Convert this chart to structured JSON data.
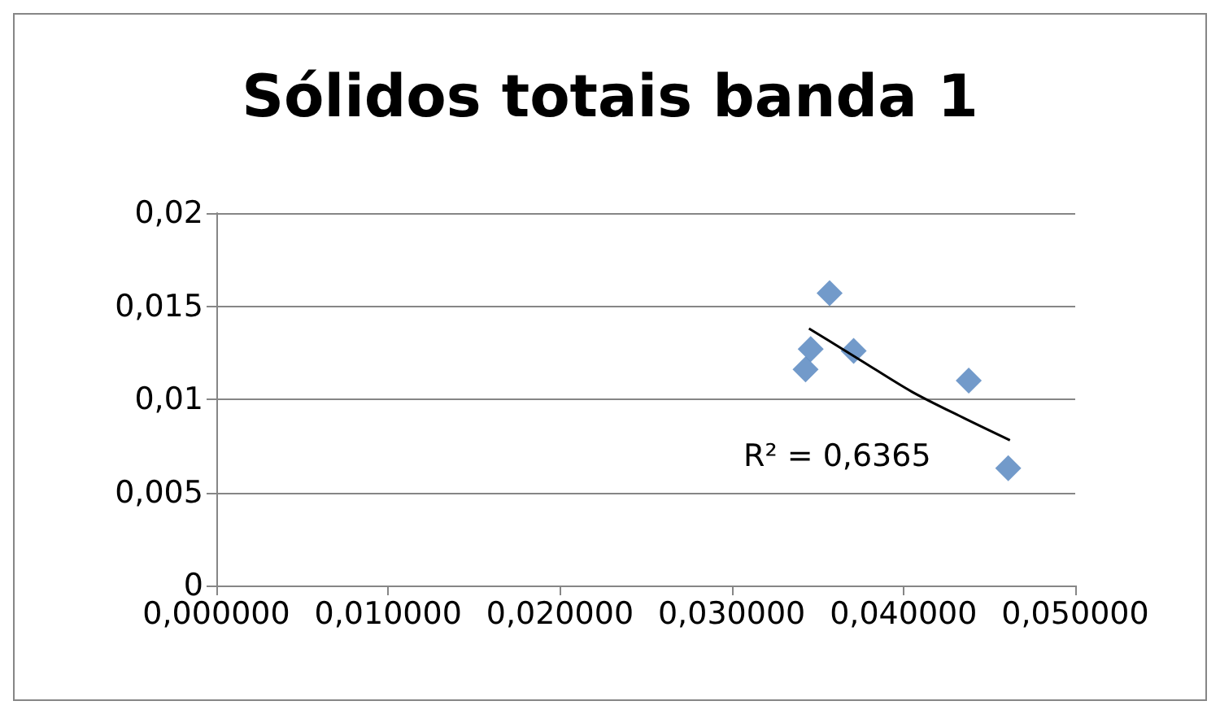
{
  "chart_data": {
    "type": "scatter",
    "title": "Sólidos totais banda 1",
    "marker": "diamond",
    "grid": "y",
    "xlim": [
      0,
      0.05
    ],
    "xticks": [
      {
        "value": 0,
        "label": "0,000000"
      },
      {
        "value": 0.01,
        "label": "0,010000"
      },
      {
        "value": 0.02,
        "label": "0,020000"
      },
      {
        "value": 0.03,
        "label": "0,030000"
      },
      {
        "value": 0.04,
        "label": "0,040000"
      },
      {
        "value": 0.05,
        "label": "0,050000"
      }
    ],
    "ylim": [
      0,
      0.02
    ],
    "yticks": [
      {
        "value": 0,
        "label": "0"
      },
      {
        "value": 0.005,
        "label": "0,005"
      },
      {
        "value": 0.01,
        "label": "0,01"
      },
      {
        "value": 0.015,
        "label": "0,015"
      },
      {
        "value": 0.02,
        "label": "0,02"
      }
    ],
    "series": [
      {
        "color": "#4f81bd",
        "x": [
          0.0343,
          0.0346,
          0.0357,
          0.0371,
          0.0438,
          0.0461
        ],
        "values": [
          0.0116,
          0.0127,
          0.0157,
          0.0126,
          0.011,
          0.0063
        ]
      },
      {
        "type": "line",
        "color": "#000000",
        "marker": "none",
        "line_style": "solid",
        "x": [
          0.0345,
          0.0375,
          0.0405,
          0.0435,
          0.0462
        ],
        "values": [
          0.0138,
          0.0121,
          0.0104,
          0.009,
          0.0078
        ]
      }
    ],
    "annotations": [
      "R² = 0,6365"
    ]
  }
}
